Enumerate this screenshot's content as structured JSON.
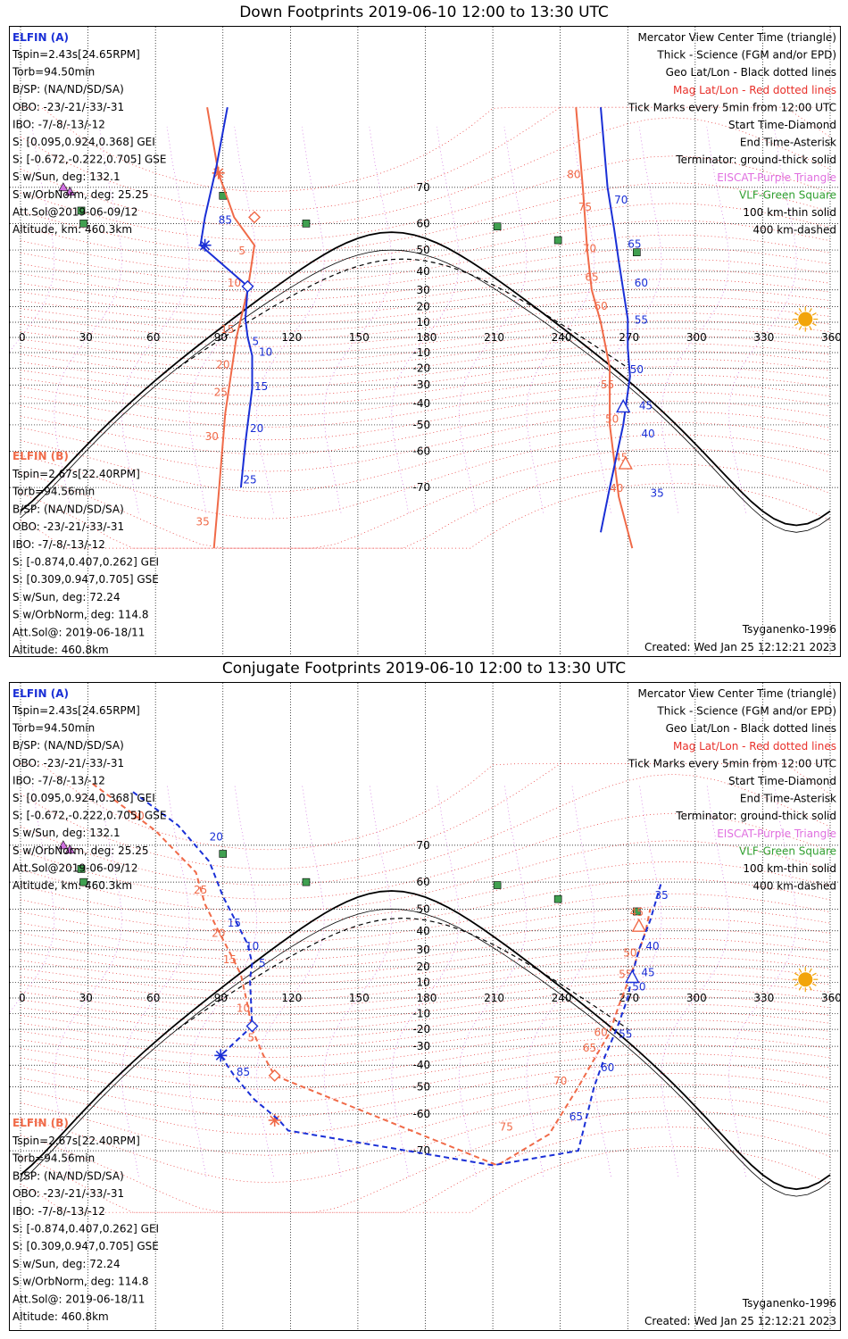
{
  "panels": [
    {
      "title": "Down Footprints 2019-06-10 12:00 to 13:30 UTC",
      "left_a_title": "ELFIN (A)",
      "left_a": [
        "Tspin=2.43s[24.65RPM]",
        "Torb=94.50min",
        "B/SP: (NA/ND/SD/SA)",
        "OBO: -23/-21/-33/-31",
        "IBO: -7/-8/-13/-12",
        "S: [0.095,0.924,0.368] GEI",
        "S: [-0.672,-0.222,0.705] GSE",
        "S w/Sun, deg: 132.1",
        "S w/OrbNorm, deg: 25.25",
        "Att.Sol@2019-06-09/12",
        "Altitude, km: 460.3km"
      ],
      "left_b_title": "ELFIN (B)",
      "left_b": [
        "Tspin=2.67s[22.40RPM]",
        "Torb=94.56min",
        "B/SP: (NA/ND/SD/SA)",
        "OBO: -23/-21/-33/-31",
        "IBO: -7/-8/-13/-12",
        "S: [-0.874,0.407,0.262] GEI",
        "S: [0.309,0.947,0.705] GSE",
        "S w/Sun, deg: 72.24",
        "S w/OrbNorm, deg: 114.8",
        "Att.Sol@: 2019-06-18/11",
        "Altitude: 460.8km"
      ],
      "legend": [
        {
          "text": "Mercator View Center Time (triangle)",
          "color": "#000000"
        },
        {
          "text": "Thick - Science (FGM and/or EPD)",
          "color": "#000000"
        },
        {
          "text": "Geo Lat/Lon - Black dotted lines",
          "color": "#000000"
        },
        {
          "text": "Mag Lat/Lon - Red dotted lines",
          "color": "#e8302a"
        },
        {
          "text": "Tick Marks every 5min from 12:00 UTC",
          "color": "#000000"
        },
        {
          "text": "Start Time-Diamond",
          "color": "#000000"
        },
        {
          "text": "End Time-Asterisk",
          "color": "#000000"
        },
        {
          "text": "Terminator: ground-thick solid",
          "color": "#000000"
        },
        {
          "text": "EISCAT-Purple Triangle",
          "color": "#e070e0"
        },
        {
          "text": "VLF-Green Square",
          "color": "#30a030"
        },
        {
          "text": "100 km-thin solid",
          "color": "#000000"
        },
        {
          "text": "400 km-dashed",
          "color": "#000000"
        }
      ],
      "model": "Tsyganenko-1996",
      "created": "Created: Wed Jan 25 12:12:21 2023"
    },
    {
      "title": "Conjugate Footprints 2019-06-10 12:00 to 13:30 UTC",
      "left_a_title": "ELFIN (A)",
      "left_a": [
        "Tspin=2.43s[24.65RPM]",
        "Torb=94.50min",
        "B/SP: (NA/ND/SD/SA)",
        "OBO: -23/-21/-33/-31",
        "IBO: -7/-8/-13/-12",
        "S: [0.095,0.924,0.368] GEI",
        "S: [-0.672,-0.222,0.705] GSE",
        "S w/Sun, deg: 132.1",
        "S w/OrbNorm, deg: 25.25",
        "Att.Sol@2019-06-09/12",
        "Altitude, km: 460.3km"
      ],
      "left_b_title": "ELFIN (B)",
      "left_b": [
        "Tspin=2.67s[22.40RPM]",
        "Torb=94.56min",
        "B/SP: (NA/ND/SD/SA)",
        "OBO: -23/-21/-33/-31",
        "IBO: -7/-8/-13/-12",
        "S: [-0.874,0.407,0.262] GEI",
        "S: [0.309,0.947,0.705] GSE",
        "S w/Sun, deg: 72.24",
        "S w/OrbNorm, deg: 114.8",
        "Att.Sol@: 2019-06-18/11",
        "Altitude: 460.8km"
      ],
      "legend": [
        {
          "text": "Mercator View Center Time (triangle)",
          "color": "#000000"
        },
        {
          "text": "Thick - Science (FGM and/or EPD)",
          "color": "#000000"
        },
        {
          "text": "Geo Lat/Lon - Black dotted lines",
          "color": "#000000"
        },
        {
          "text": "Mag Lat/Lon - Red dotted lines",
          "color": "#e8302a"
        },
        {
          "text": "Tick Marks every 5min from 12:00 UTC",
          "color": "#000000"
        },
        {
          "text": "Start Time-Diamond",
          "color": "#000000"
        },
        {
          "text": "End Time-Asterisk",
          "color": "#000000"
        },
        {
          "text": "Terminator: ground-thick solid",
          "color": "#000000"
        },
        {
          "text": "EISCAT-Purple Triangle",
          "color": "#e070e0"
        },
        {
          "text": "VLF-Green Square",
          "color": "#30a030"
        },
        {
          "text": "100 km-thin solid",
          "color": "#000000"
        },
        {
          "text": "400 km-dashed",
          "color": "#000000"
        }
      ],
      "model": "Tsyganenko-1996",
      "created": "Created: Wed Jan 25 12:12:21 2023"
    }
  ],
  "map": {
    "lon_ticks": [
      0,
      30,
      60,
      90,
      120,
      150,
      180,
      210,
      240,
      270,
      300,
      330,
      360
    ],
    "lat_ticks": [
      70,
      60,
      50,
      40,
      30,
      20,
      10,
      -10,
      -20,
      -30,
      -40,
      -50,
      -60,
      -70
    ],
    "lon_range": [
      0,
      360
    ],
    "lat_range": [
      -75,
      80
    ]
  },
  "colors": {
    "elfin_a": "#1a2fd6",
    "elfin_b": "#f06a48",
    "mag_grid": "#e83030",
    "eiscat": "#d070e0",
    "vlf": "#40a050",
    "sun": "#f2a40a"
  },
  "sites": {
    "vlf": [
      [
        90,
        68
      ],
      [
        27,
        64
      ],
      [
        28,
        60
      ],
      [
        127,
        60
      ],
      [
        212,
        59
      ],
      [
        239,
        54
      ],
      [
        274,
        49
      ]
    ],
    "eiscat": [
      [
        19,
        70
      ],
      [
        22,
        69
      ]
    ]
  },
  "down": {
    "a": {
      "points": [
        [
          92,
          82
        ],
        [
          87,
          74
        ],
        [
          82,
          62
        ],
        [
          80,
          52
        ],
        [
          101,
          32
        ],
        [
          100,
          12
        ],
        [
          101,
          0
        ],
        [
          103,
          -12
        ],
        [
          103,
          -32
        ],
        [
          100,
          -57
        ],
        [
          98,
          -70
        ],
        [
          258,
          -78
        ],
        [
          262,
          -70
        ],
        [
          268,
          -50
        ],
        [
          271,
          -25
        ],
        [
          270,
          -7
        ],
        [
          270,
          12
        ],
        [
          268,
          30
        ],
        [
          266,
          45
        ],
        [
          264,
          58
        ],
        [
          261,
          70
        ],
        [
          258,
          82
        ]
      ],
      "labels": [
        {
          "t": "85",
          "lon": 88,
          "lat": 60
        },
        {
          "t": "5",
          "lon": 103,
          "lat": -5
        },
        {
          "t": "10",
          "lon": 106,
          "lat": -12
        },
        {
          "t": "15",
          "lon": 104,
          "lat": -33
        },
        {
          "t": "20",
          "lon": 102,
          "lat": -53
        },
        {
          "t": "25",
          "lon": 99,
          "lat": -69
        },
        {
          "t": "35",
          "lon": 280,
          "lat": -72
        },
        {
          "t": "40",
          "lon": 276,
          "lat": -55
        },
        {
          "t": "45",
          "lon": 275,
          "lat": -43
        },
        {
          "t": "50",
          "lon": 271,
          "lat": -23
        },
        {
          "t": "55",
          "lon": 273,
          "lat": 9
        },
        {
          "t": "60",
          "lon": 273,
          "lat": 32
        },
        {
          "t": "65",
          "lon": 270,
          "lat": 51
        },
        {
          "t": "70",
          "lon": 264,
          "lat": 66
        }
      ],
      "end_markers": [
        {
          "type": "asterisk",
          "lon": 82,
          "lat": 52
        }
      ],
      "diamond": {
        "lon": 101,
        "lat": 32
      },
      "triangle": {
        "lon": 268,
        "lat": -42
      }
    },
    "b": {
      "points": [
        [
          83,
          82
        ],
        [
          88,
          73
        ],
        [
          95,
          62
        ],
        [
          104,
          52
        ],
        [
          101,
          30
        ],
        [
          96,
          0
        ],
        [
          94,
          -20
        ],
        [
          91,
          -45
        ],
        [
          88,
          -72
        ],
        [
          86,
          -80
        ],
        [
          272,
          -80
        ],
        [
          266,
          -72
        ],
        [
          262,
          -50
        ],
        [
          262,
          -35
        ],
        [
          262,
          -20
        ],
        [
          260,
          -5
        ],
        [
          258,
          10
        ],
        [
          254,
          30
        ],
        [
          252,
          50
        ],
        [
          250,
          70
        ],
        [
          247,
          82
        ]
      ],
      "labels": [
        {
          "t": "5",
          "lon": 97,
          "lat": 48
        },
        {
          "t": "10",
          "lon": 92,
          "lat": 32
        },
        {
          "t": "15",
          "lon": 89,
          "lat": 3
        },
        {
          "t": "20",
          "lon": 87,
          "lat": -20
        },
        {
          "t": "25",
          "lon": 86,
          "lat": -36
        },
        {
          "t": "30",
          "lon": 82,
          "lat": -56
        },
        {
          "t": "35",
          "lon": 78,
          "lat": -77
        },
        {
          "t": "40",
          "lon": 262,
          "lat": -71
        },
        {
          "t": "45",
          "lon": 264,
          "lat": -63
        },
        {
          "t": "50",
          "lon": 260,
          "lat": -49
        },
        {
          "t": "55",
          "lon": 258,
          "lat": -32
        },
        {
          "t": "60",
          "lon": 255,
          "lat": 18
        },
        {
          "t": "65",
          "lon": 251,
          "lat": 35
        },
        {
          "t": "70",
          "lon": 250,
          "lat": 49
        },
        {
          "t": "75",
          "lon": 248,
          "lat": 64
        },
        {
          "t": "80",
          "lon": 243,
          "lat": 72
        }
      ],
      "end_markers": [
        {
          "type": "asterisk",
          "lon": 88,
          "lat": 73
        }
      ],
      "diamond": {
        "lon": 104,
        "lat": 62
      },
      "triangle": {
        "lon": 269,
        "lat": -64
      }
    }
  },
  "conj": {
    "a": {
      "points": [
        [
          50,
          79
        ],
        [
          70,
          74
        ],
        [
          84,
          66
        ],
        [
          90,
          55
        ],
        [
          96,
          44
        ],
        [
          101,
          33
        ],
        [
          103,
          22
        ],
        [
          102,
          12
        ],
        [
          103,
          -18
        ],
        [
          89,
          -35
        ],
        [
          95,
          -45
        ],
        [
          104,
          -55
        ],
        [
          115,
          -62
        ],
        [
          119,
          -65
        ],
        [
          210,
          -73
        ],
        [
          248,
          -70
        ],
        [
          255,
          -50
        ],
        [
          260,
          -35
        ],
        [
          265,
          -20
        ],
        [
          270,
          0
        ],
        [
          272,
          15
        ],
        [
          275,
          30
        ],
        [
          280,
          45
        ],
        [
          285,
          60
        ]
      ],
      "labels": [
        {
          "t": "20",
          "lon": 84,
          "lat": 71
        },
        {
          "t": "15",
          "lon": 92,
          "lat": 42
        },
        {
          "t": "10",
          "lon": 100,
          "lat": 30
        },
        {
          "t": "5",
          "lon": 106,
          "lat": 20
        },
        {
          "t": "85",
          "lon": 96,
          "lat": -45
        },
        {
          "t": "55",
          "lon": 266,
          "lat": -25
        },
        {
          "t": "60",
          "lon": 258,
          "lat": -43
        },
        {
          "t": "65",
          "lon": 244,
          "lat": -62
        },
        {
          "t": "50",
          "lon": 272,
          "lat": 5
        },
        {
          "t": "45",
          "lon": 276,
          "lat": 14
        },
        {
          "t": "40",
          "lon": 278,
          "lat": 30
        },
        {
          "t": "35",
          "lon": 282,
          "lat": 54
        }
      ],
      "end_markers": [
        {
          "type": "asterisk",
          "lon": 89,
          "lat": -35
        }
      ],
      "diamond": {
        "lon": 103,
        "lat": -18
      },
      "triangle": {
        "lon": 272,
        "lat": 13
      }
    },
    "b": {
      "points": [
        [
          32,
          80
        ],
        [
          60,
          73
        ],
        [
          78,
          63
        ],
        [
          82,
          52
        ],
        [
          88,
          40
        ],
        [
          94,
          26
        ],
        [
          98,
          15
        ],
        [
          101,
          -5
        ],
        [
          103,
          -20
        ],
        [
          108,
          -35
        ],
        [
          113,
          -45
        ],
        [
          212,
          -73
        ],
        [
          235,
          -66
        ],
        [
          248,
          -50
        ],
        [
          256,
          -35
        ],
        [
          262,
          -22
        ],
        [
          266,
          -5
        ],
        [
          270,
          10
        ],
        [
          274,
          25
        ],
        [
          278,
          40
        ],
        [
          280,
          50
        ]
      ],
      "labels": [
        {
          "t": "30",
          "lon": 49,
          "lat": 75
        },
        {
          "t": "25",
          "lon": 77,
          "lat": 56
        },
        {
          "t": "20",
          "lon": 85,
          "lat": 37
        },
        {
          "t": "15",
          "lon": 90,
          "lat": 22
        },
        {
          "t": "10",
          "lon": 96,
          "lat": -9
        },
        {
          "t": "5",
          "lon": 101,
          "lat": -27
        },
        {
          "t": "75",
          "lon": 213,
          "lat": -65
        },
        {
          "t": "70",
          "lon": 237,
          "lat": -49
        },
        {
          "t": "65",
          "lon": 250,
          "lat": -33
        },
        {
          "t": "60",
          "lon": 255,
          "lat": -24
        },
        {
          "t": "55",
          "lon": 266,
          "lat": 13
        },
        {
          "t": "50",
          "lon": 268,
          "lat": 26
        },
        {
          "t": "45",
          "lon": 271,
          "lat": 47
        }
      ],
      "end_markers": [
        {
          "type": "asterisk",
          "lon": 113,
          "lat": -62
        }
      ],
      "diamond": {
        "lon": 113,
        "lat": -45
      },
      "triangle": {
        "lon": 275,
        "lat": 42
      }
    }
  }
}
